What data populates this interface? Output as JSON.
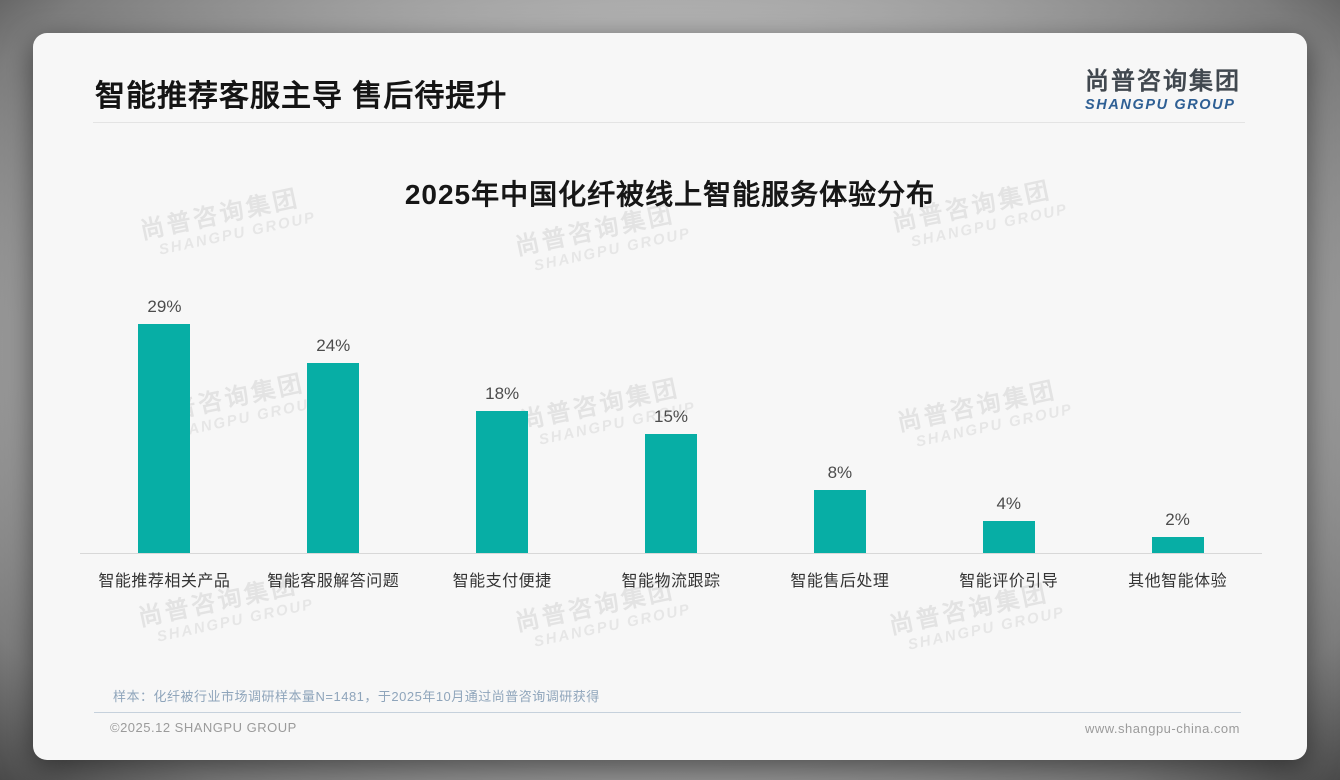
{
  "page": {
    "header_title": "智能推荐客服主导 售后待提升",
    "logo_cn": "尚普咨询集团",
    "logo_en": "SHANGPU GROUP",
    "footnote": "样本：化纤被行业市场调研样本量N=1481，于2025年10月通过尚普咨询调研获得",
    "copyright": "©2025.12 SHANGPU GROUP",
    "website": "www.shangpu-china.com"
  },
  "watermark": {
    "cn": "尚普咨询集团",
    "en": "SHANGPU GROUP"
  },
  "chart_data": {
    "type": "bar",
    "title": "2025年中国化纤被线上智能服务体验分布",
    "categories": [
      "智能推荐相关产品",
      "智能客服解答问题",
      "智能支付便捷",
      "智能物流跟踪",
      "智能售后处理",
      "智能评价引导",
      "其他智能体验"
    ],
    "values": [
      29,
      24,
      18,
      15,
      8,
      4,
      2
    ],
    "value_labels": [
      "29%",
      "24%",
      "18%",
      "15%",
      "8%",
      "4%",
      "2%"
    ],
    "unit": "percent",
    "bar_color": "#07aea5",
    "ylim": [
      0,
      30
    ],
    "grid": false,
    "legend": "none",
    "value_label_position": "above-bar"
  }
}
